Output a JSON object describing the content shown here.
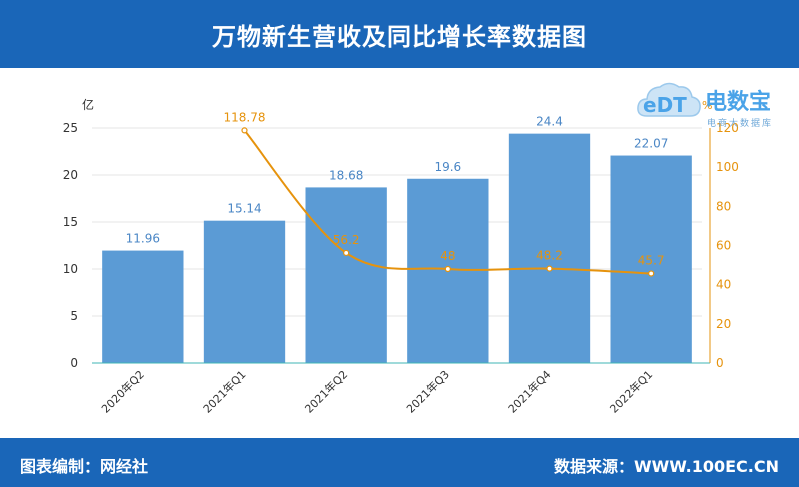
{
  "header": {
    "title": "万物新生营收及同比增长率数据图"
  },
  "footer": {
    "left": "图表编制：网经社",
    "right": "数据来源：WWW.100EC.CN"
  },
  "logo": {
    "mark": "eDT",
    "brand": "电数宝",
    "sub": "电商大数据库"
  },
  "colors": {
    "bar": "#5b9bd5",
    "line": "#e6930d",
    "header": "#1a66b8",
    "baseline": "#3fb6b6"
  },
  "chart_data": {
    "type": "bar",
    "categories": [
      "2020年Q2",
      "2021年Q1",
      "2021年Q2",
      "2021年Q3",
      "2021年Q4",
      "2022年Q1"
    ],
    "left_axis": {
      "unit": "亿",
      "ylim": [
        0,
        25
      ],
      "ticks": [
        0,
        5,
        10,
        15,
        20,
        25
      ]
    },
    "right_axis": {
      "unit": "%",
      "ylim": [
        0,
        120
      ],
      "ticks": [
        0,
        20,
        40,
        60,
        80,
        100,
        120
      ]
    },
    "series": [
      {
        "type": "bar",
        "axis": "left",
        "values": [
          11.96,
          15.14,
          18.68,
          19.6,
          24.4,
          22.07
        ]
      },
      {
        "type": "line",
        "axis": "right",
        "values": [
          null,
          118.78,
          56.2,
          48,
          48.2,
          45.7
        ]
      }
    ],
    "value_labels": {
      "bars": [
        "11.96",
        "15.14",
        "18.68",
        "19.6",
        "24.4",
        "22.07"
      ],
      "line": [
        "",
        "118.78",
        "56.2",
        "48",
        "48.2",
        "45.7"
      ]
    },
    "grid": true
  }
}
